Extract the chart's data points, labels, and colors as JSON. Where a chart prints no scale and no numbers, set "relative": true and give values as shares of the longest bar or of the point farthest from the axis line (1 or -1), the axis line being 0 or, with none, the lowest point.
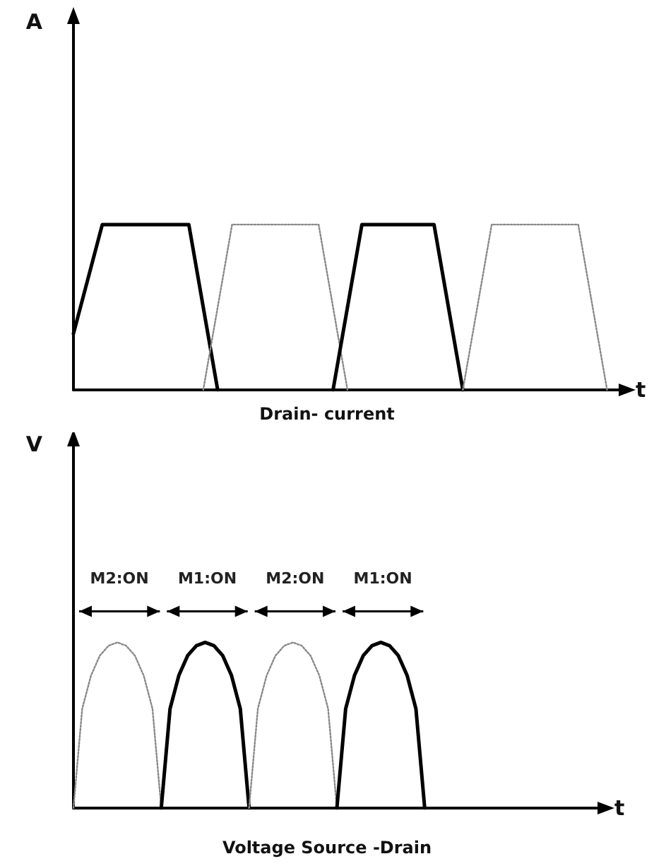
{
  "chart_data": [
    {
      "type": "line",
      "title": "Drain- current",
      "xlabel": "t",
      "ylabel": "A",
      "relative": true,
      "marker": "none",
      "categories": [
        null,
        null,
        null,
        null,
        null,
        null,
        null,
        null,
        null,
        null,
        null,
        null,
        null,
        null,
        null,
        null,
        null,
        null,
        null,
        null,
        null,
        null,
        null,
        null,
        null,
        null,
        null,
        null,
        null,
        null,
        null,
        null,
        null,
        null,
        null,
        null,
        null,
        null,
        null
      ],
      "series": [
        {
          "color": "#000000",
          "line_style": "solid",
          "values": [
            0.34,
            0.67,
            1,
            1,
            1,
            1,
            1,
            1,
            1,
            0.5,
            0,
            null,
            null,
            null,
            null,
            null,
            null,
            null,
            null,
            null,
            null,
            null,
            null,
            null,
            null,
            null,
            null,
            null,
            null,
            null,
            null,
            null,
            null,
            null,
            null,
            null,
            null,
            null,
            null
          ]
        },
        {
          "color": "#888888",
          "line_style": "dotted",
          "values": [
            null,
            null,
            null,
            null,
            null,
            null,
            null,
            null,
            null,
            0,
            0.5,
            1,
            1,
            1,
            1,
            1,
            1,
            1,
            0.5,
            0,
            null,
            null,
            null,
            null,
            null,
            null,
            null,
            null,
            null,
            null,
            null,
            null,
            null,
            null,
            null,
            null,
            null,
            null,
            null
          ]
        },
        {
          "color": "#000000",
          "line_style": "solid",
          "values": [
            null,
            null,
            null,
            null,
            null,
            null,
            null,
            null,
            null,
            null,
            null,
            null,
            null,
            null,
            null,
            null,
            null,
            null,
            0,
            0.5,
            1,
            1,
            1,
            1,
            1,
            1,
            0.5,
            0,
            null,
            null,
            null,
            null,
            null,
            null,
            null,
            null,
            null,
            null,
            null
          ]
        },
        {
          "color": "#888888",
          "line_style": "dotted",
          "values": [
            null,
            null,
            null,
            null,
            null,
            null,
            null,
            null,
            null,
            null,
            null,
            null,
            null,
            null,
            null,
            null,
            null,
            null,
            null,
            null,
            null,
            null,
            null,
            null,
            null,
            null,
            null,
            0,
            0.5,
            1,
            1,
            1,
            1,
            1,
            1,
            1,
            0.5,
            0,
            null
          ]
        }
      ]
    },
    {
      "type": "line",
      "title": "Voltage Source -Drain",
      "xlabel": "t",
      "ylabel": "V",
      "relative": true,
      "marker": "none",
      "annotations": [
        "M2:ON",
        "M1:ON",
        "M2:ON",
        "M1:ON"
      ],
      "categories": [
        null,
        null,
        null,
        null,
        null,
        null,
        null,
        null,
        null,
        null,
        null,
        null,
        null,
        null,
        null,
        null,
        null,
        null,
        null,
        null,
        null,
        null,
        null,
        null,
        null,
        null,
        null,
        null,
        null,
        null,
        null,
        null,
        null,
        null,
        null,
        null,
        null,
        null,
        null,
        null,
        null,
        null,
        null,
        null,
        null,
        null,
        null,
        null,
        null,
        null,
        null,
        null,
        null,
        null,
        null,
        null,
        null,
        null,
        null,
        null,
        null
      ],
      "series": [
        {
          "color": "#888888",
          "line_style": "dotted",
          "values": [
            0,
            0.6,
            0.8,
            0.92,
            0.98,
            1,
            0.98,
            0.92,
            0.8,
            0.6,
            0,
            null,
            null,
            null,
            null,
            null,
            null,
            null,
            null,
            null,
            null,
            null,
            null,
            null,
            null,
            null,
            null,
            null,
            null,
            null,
            null,
            null,
            null,
            null,
            null,
            null,
            null,
            null,
            null,
            null,
            null,
            null,
            null,
            null,
            null,
            null,
            null,
            null,
            null,
            null,
            null,
            null,
            null,
            null,
            null,
            null,
            null,
            null,
            null,
            null,
            null
          ]
        },
        {
          "color": "#000000",
          "line_style": "solid",
          "values": [
            null,
            null,
            null,
            null,
            null,
            null,
            null,
            null,
            null,
            null,
            0,
            0.6,
            0.8,
            0.92,
            0.98,
            1,
            0.98,
            0.92,
            0.8,
            0.6,
            0,
            null,
            null,
            null,
            null,
            null,
            null,
            null,
            null,
            null,
            null,
            null,
            null,
            null,
            null,
            null,
            null,
            null,
            null,
            null,
            null,
            null,
            null,
            null,
            null,
            null,
            null,
            null,
            null,
            null,
            null,
            null,
            null,
            null,
            null,
            null,
            null,
            null,
            null,
            null,
            null
          ]
        },
        {
          "color": "#888888",
          "line_style": "dotted",
          "values": [
            null,
            null,
            null,
            null,
            null,
            null,
            null,
            null,
            null,
            null,
            null,
            null,
            null,
            null,
            null,
            null,
            null,
            null,
            null,
            null,
            0,
            0.6,
            0.8,
            0.92,
            0.98,
            1,
            0.98,
            0.92,
            0.8,
            0.6,
            0,
            null,
            null,
            null,
            null,
            null,
            null,
            null,
            null,
            null,
            null,
            null,
            null,
            null,
            null,
            null,
            null,
            null,
            null,
            null,
            null,
            null,
            null,
            null,
            null,
            null,
            null,
            null,
            null,
            null,
            null
          ]
        },
        {
          "color": "#000000",
          "line_style": "solid",
          "values": [
            null,
            null,
            null,
            null,
            null,
            null,
            null,
            null,
            null,
            null,
            null,
            null,
            null,
            null,
            null,
            null,
            null,
            null,
            null,
            null,
            null,
            null,
            null,
            null,
            null,
            null,
            null,
            null,
            null,
            null,
            0,
            0.6,
            0.8,
            0.92,
            0.98,
            1,
            0.98,
            0.92,
            0.8,
            0.6,
            0,
            null,
            null,
            null,
            null,
            null,
            null,
            null,
            null,
            null,
            null,
            null,
            null,
            null,
            null,
            null,
            null,
            null,
            null,
            null,
            null
          ]
        }
      ]
    }
  ]
}
